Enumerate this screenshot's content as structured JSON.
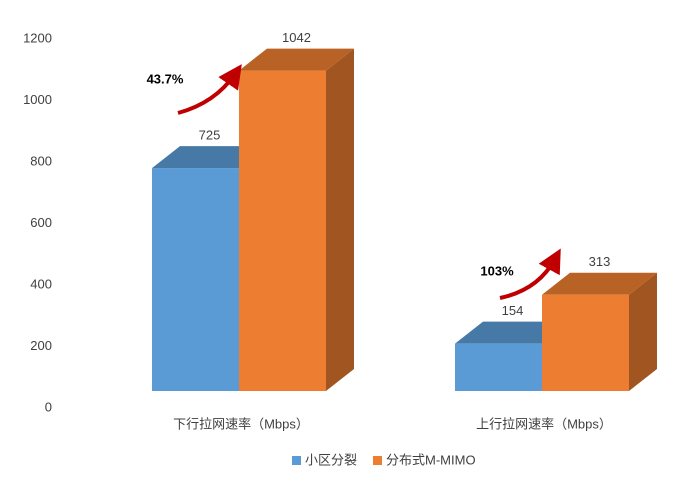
{
  "chart_data": {
    "type": "bar3d",
    "categories": [
      "下行拉网速率（Mbps）",
      "上行拉网速率（Mbps）"
    ],
    "series": [
      {
        "name": "小区分裂",
        "color": "#5b9bd5",
        "values": [
          725,
          154
        ]
      },
      {
        "name": "分布式M-MIMO",
        "color": "#ed7d31",
        "values": [
          1042,
          313
        ]
      }
    ],
    "ylim": [
      0,
      1200
    ],
    "yticks": [
      0,
      200,
      400,
      600,
      800,
      1000,
      1200
    ],
    "annotations": [
      {
        "text": "43.7%"
      },
      {
        "text": "103%"
      }
    ],
    "legend": "bottom"
  }
}
